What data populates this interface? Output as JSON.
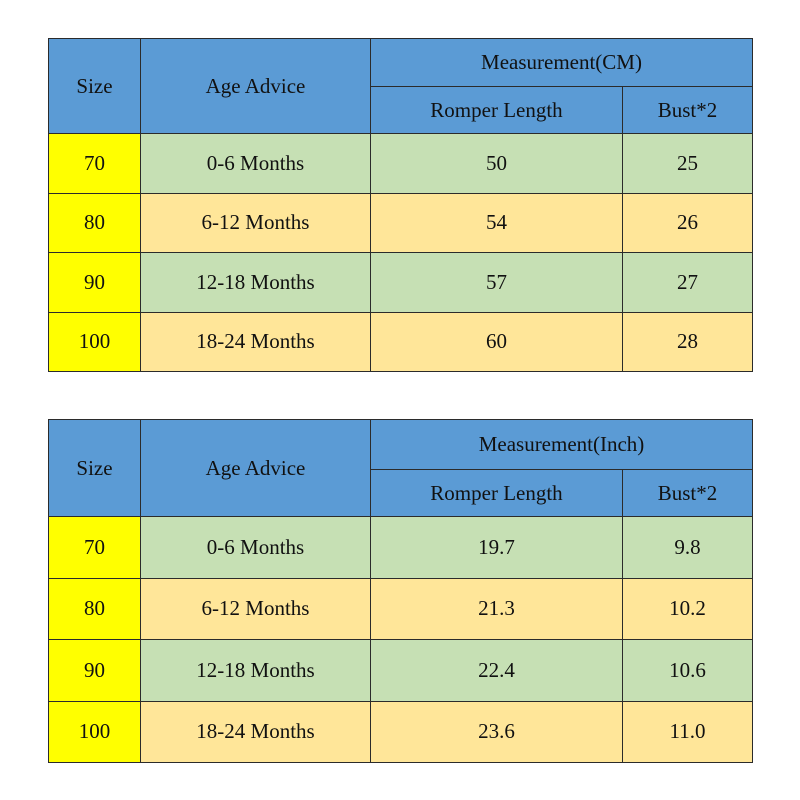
{
  "tables": [
    {
      "header": {
        "size": "Size",
        "age": "Age Advice",
        "measurement": "Measurement(CM)",
        "romper": "Romper Length",
        "bust": "Bust*2"
      },
      "rows": [
        [
          "70",
          "0-6 Months",
          "50",
          "25"
        ],
        [
          "80",
          "6-12 Months",
          "54",
          "26"
        ],
        [
          "90",
          "12-18 Months",
          "57",
          "27"
        ],
        [
          "100",
          "18-24 Months",
          "60",
          "28"
        ]
      ]
    },
    {
      "header": {
        "size": "Size",
        "age": "Age Advice",
        "measurement": "Measurement(Inch)",
        "romper": "Romper Length",
        "bust": "Bust*2"
      },
      "rows": [
        [
          "70",
          "0-6 Months",
          "19.7",
          "9.8"
        ],
        [
          "80",
          "6-12 Months",
          "21.3",
          "10.2"
        ],
        [
          "90",
          "12-18 Months",
          "22.4",
          "10.6"
        ],
        [
          "100",
          "18-24 Months",
          "23.6",
          "11.0"
        ]
      ]
    }
  ]
}
